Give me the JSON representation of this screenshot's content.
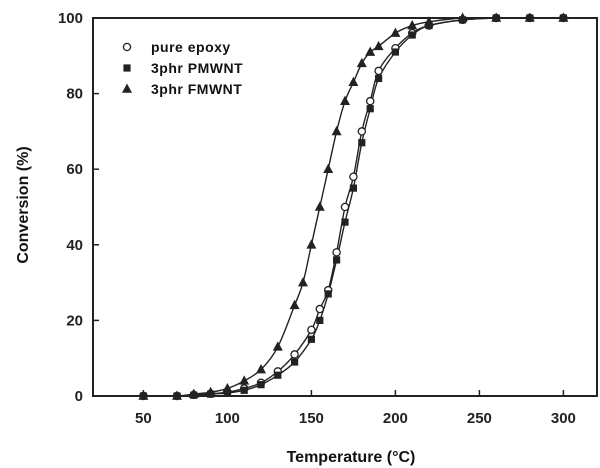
{
  "chart_data": {
    "type": "line",
    "xlabel": "Temperature (°C)",
    "ylabel": "Conversion (%)",
    "xlim": [
      20,
      320
    ],
    "ylim": [
      0,
      100
    ],
    "xticks": [
      50,
      100,
      150,
      200,
      250,
      300
    ],
    "yticks": [
      0,
      20,
      40,
      60,
      80,
      100
    ],
    "legend_position": "top-left",
    "line_color": "#222222",
    "series": [
      {
        "name": "pure epoxy",
        "marker": "open-circle",
        "x": [
          50,
          70,
          80,
          90,
          100,
          110,
          120,
          130,
          140,
          150,
          155,
          160,
          165,
          170,
          175,
          180,
          185,
          190,
          200,
          210,
          220,
          240,
          260,
          280,
          300
        ],
        "y": [
          0,
          0,
          0.3,
          0.6,
          1,
          2,
          3.5,
          6.5,
          11,
          17.5,
          23,
          28,
          38,
          50,
          58,
          70,
          78,
          86,
          92,
          96,
          98,
          99.5,
          100,
          100,
          100
        ]
      },
      {
        "name": "3phr PMWNT",
        "marker": "filled-square",
        "x": [
          50,
          70,
          80,
          90,
          100,
          110,
          120,
          130,
          140,
          150,
          155,
          160,
          165,
          170,
          175,
          180,
          185,
          190,
          200,
          210,
          220,
          240,
          260,
          280,
          300
        ],
        "y": [
          0,
          0,
          0.2,
          0.5,
          0.8,
          1.5,
          3,
          5.5,
          9,
          15,
          20,
          27,
          36,
          46,
          55,
          67,
          76,
          84,
          91,
          95.5,
          98,
          99.5,
          100,
          100,
          100
        ]
      },
      {
        "name": "3phr FMWNT",
        "marker": "filled-triangle",
        "x": [
          50,
          70,
          80,
          90,
          100,
          110,
          120,
          130,
          140,
          145,
          150,
          155,
          160,
          165,
          170,
          175,
          180,
          185,
          190,
          200,
          210,
          220,
          240,
          260,
          280,
          300
        ],
        "y": [
          0,
          0,
          0.5,
          1,
          2,
          4,
          7,
          13,
          24,
          30,
          40,
          50,
          60,
          70,
          78,
          83,
          88,
          91,
          92.5,
          96,
          98,
          99,
          100,
          100,
          100,
          100
        ]
      }
    ]
  }
}
